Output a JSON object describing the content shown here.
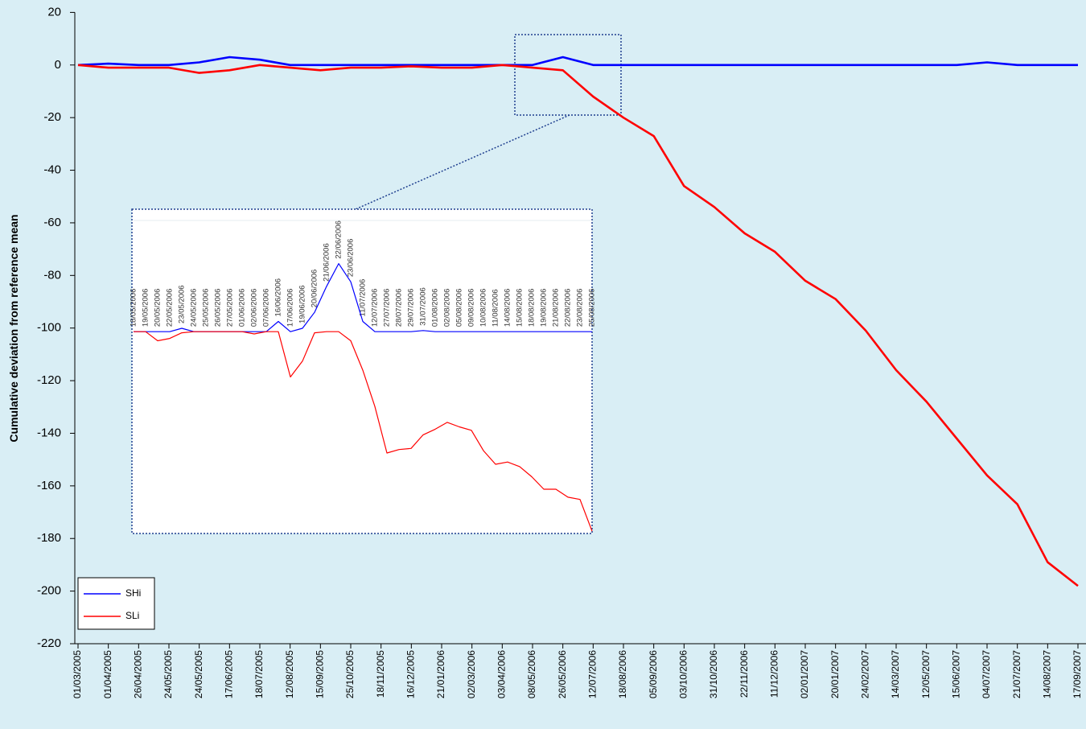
{
  "chart_data": [
    {
      "type": "line",
      "y_label": "Cumulative deviation from reference  mean",
      "categories": [
        "01/03/2005",
        "01/04/2005",
        "26/04/2005",
        "24/05/2005",
        "24/05/2005",
        "17/06/2005",
        "18/07/2005",
        "12/08/2005",
        "15/09/2005",
        "25/10/2005",
        "18/11/2005",
        "16/12/2005",
        "21/01/2006",
        "02/03/2006",
        "03/04/2006",
        "08/05/2006",
        "26/05/2006",
        "12/07/2006",
        "18/08/2006",
        "05/09/2006",
        "03/10/2006",
        "31/10/2006",
        "22/11/2006",
        "11/12/2006",
        "02/01/2007",
        "20/01/2007",
        "24/02/2007",
        "14/03/2007",
        "12/05/2007",
        "15/06/2007",
        "04/07/2007",
        "21/07/2007",
        "14/08/2007",
        "17/09/2007"
      ],
      "series": [
        {
          "name": "SHi",
          "color": "#0000ff",
          "values": [
            0,
            0.5,
            0,
            0,
            1,
            3,
            2,
            0,
            0,
            0,
            0,
            0,
            0,
            0,
            0,
            0,
            3,
            0,
            0,
            0,
            0,
            0,
            0,
            0,
            0,
            0,
            0,
            0,
            0,
            0,
            1,
            0,
            0,
            0
          ]
        },
        {
          "name": "SLi",
          "color": "#ff0000",
          "values": [
            0,
            -1,
            -1,
            -1,
            -3,
            -2,
            0,
            -1,
            -2,
            -1,
            -1,
            -0.5,
            -1,
            -1,
            0,
            -1,
            -2,
            -12,
            -20,
            -27,
            -46,
            -54,
            -64,
            -71,
            -82,
            -89,
            -101,
            -116,
            -128,
            -142,
            -156,
            -167,
            -189,
            -198
          ]
        }
      ],
      "ylim": [
        -220,
        20
      ],
      "yticks": [
        20,
        0,
        -20,
        -40,
        -60,
        -80,
        -100,
        -120,
        -140,
        -160,
        -180,
        -200,
        -220
      ],
      "legend": "lower left"
    },
    {
      "type": "line",
      "categories": [
        "18/05/2006",
        "19/05/2006",
        "20/05/2006",
        "22/05/2006",
        "23/05/2006",
        "24/05/2006",
        "25/05/2006",
        "26/05/2006",
        "27/05/2006",
        "01/06/2006",
        "02/06/2006",
        "07/06/2006",
        "16/06/2006",
        "17/06/2006",
        "19/06/2006",
        "20/06/2006",
        "21/06/2006",
        "22/06/2006",
        "23/06/2006",
        "11/07/2006",
        "12/07/2006",
        "27/07/2006",
        "28/07/2006",
        "29/07/2006",
        "31/07/2006",
        "01/08/2006",
        "02/08/2006",
        "05/08/2006",
        "09/08/2006",
        "10/08/2006",
        "11/08/2006",
        "14/08/2006",
        "15/08/2006",
        "18/08/2006",
        "19/08/2006",
        "21/08/2006",
        "22/08/2006",
        "23/08/2006",
        "25/08/2006"
      ],
      "series": [
        {
          "color": "#0000ff",
          "values": [
            0,
            0,
            0,
            0,
            0.3,
            0,
            0,
            0,
            0,
            0,
            0,
            0,
            0.9,
            0,
            0.3,
            1.7,
            4.0,
            6.0,
            4.4,
            0.9,
            0,
            0,
            0,
            0,
            0.1,
            0,
            0,
            0,
            0,
            0,
            0,
            0,
            0,
            0,
            0,
            0,
            0,
            0,
            0
          ]
        },
        {
          "color": "#ff0000",
          "values": [
            0,
            0,
            -0.8,
            -0.6,
            -0.1,
            0,
            0,
            0,
            0,
            0,
            -0.2,
            0,
            0,
            -4.0,
            -2.6,
            -0.1,
            0,
            0,
            -0.8,
            -3.4,
            -6.6,
            -10.7,
            -10.4,
            -10.3,
            -9.1,
            -8.6,
            -8.0,
            -8.4,
            -8.7,
            -10.5,
            -11.7,
            -11.5,
            -11.9,
            -12.8,
            -13.9,
            -13.9,
            -14.6,
            -14.8,
            -17.6
          ]
        }
      ],
      "ylim": [
        -17.8,
        10.8
      ]
    }
  ]
}
